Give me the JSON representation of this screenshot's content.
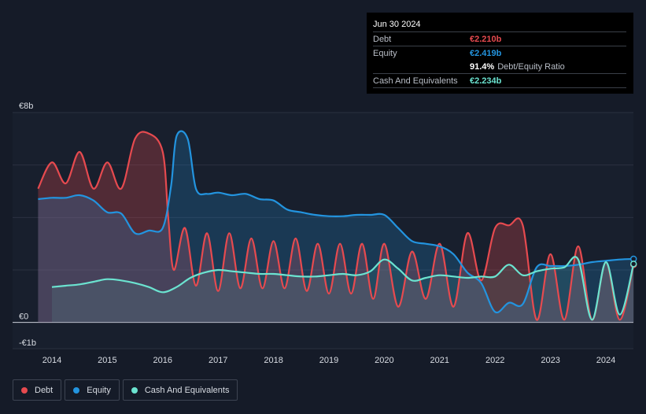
{
  "tooltip": {
    "date": "Jun 30 2024",
    "debt_label": "Debt",
    "debt_value": "€2.210b",
    "equity_label": "Equity",
    "equity_value": "€2.419b",
    "ratio_value": "91.4%",
    "ratio_label": "Debt/Equity Ratio",
    "cash_label": "Cash And Equivalents",
    "cash_value": "€2.234b"
  },
  "legend": {
    "debt_label": "Debt",
    "equity_label": "Equity",
    "cash_label": "Cash And Equivalents"
  },
  "colors": {
    "debt": "#e64a4f",
    "equity": "#2394df",
    "cash": "#6be3d0",
    "background": "#151b28"
  },
  "chart_data": {
    "type": "area",
    "title": "",
    "xlabel": "",
    "ylabel": "",
    "ylim": [
      -1,
      8
    ],
    "y_tick_labels": [
      {
        "value": 8,
        "label": "€8b"
      },
      {
        "value": 0,
        "label": "€0"
      },
      {
        "value": -1,
        "label": "-€1b"
      }
    ],
    "x_tick_labels": [
      "2014",
      "2015",
      "2016",
      "2017",
      "2018",
      "2019",
      "2020",
      "2021",
      "2022",
      "2023",
      "2024"
    ],
    "series": [
      {
        "name": "Debt",
        "x": [
          2013.75,
          2014.0,
          2014.25,
          2014.5,
          2014.75,
          2015.0,
          2015.25,
          2015.5,
          2015.75,
          2016.0,
          2016.1,
          2016.2,
          2016.4,
          2016.6,
          2016.8,
          2017.0,
          2017.2,
          2017.4,
          2017.6,
          2017.8,
          2018.0,
          2018.2,
          2018.4,
          2018.6,
          2018.8,
          2019.0,
          2019.2,
          2019.4,
          2019.6,
          2019.8,
          2020.0,
          2020.25,
          2020.5,
          2020.75,
          2021.0,
          2021.25,
          2021.5,
          2021.75,
          2022.0,
          2022.25,
          2022.5,
          2022.75,
          2023.0,
          2023.25,
          2023.5,
          2023.75,
          2024.0,
          2024.25,
          2024.5
        ],
        "values": [
          5.1,
          6.1,
          5.3,
          6.5,
          5.1,
          6.1,
          5.1,
          7.0,
          7.2,
          6.5,
          4.0,
          2.0,
          3.6,
          1.4,
          3.4,
          1.2,
          3.4,
          1.3,
          3.2,
          1.3,
          3.1,
          1.3,
          3.2,
          1.2,
          3.0,
          1.1,
          3.0,
          1.1,
          3.0,
          0.9,
          3.0,
          0.6,
          2.7,
          0.9,
          3.0,
          0.6,
          3.4,
          1.6,
          3.6,
          3.7,
          3.7,
          0.1,
          2.6,
          0.1,
          2.9,
          0.1,
          2.3,
          0.1,
          2.2
        ]
      },
      {
        "name": "Equity",
        "x": [
          2013.75,
          2014.0,
          2014.25,
          2014.5,
          2014.75,
          2015.0,
          2015.25,
          2015.5,
          2015.75,
          2016.0,
          2016.15,
          2016.25,
          2016.45,
          2016.6,
          2016.8,
          2017.0,
          2017.25,
          2017.5,
          2017.75,
          2018.0,
          2018.25,
          2018.5,
          2018.75,
          2019.0,
          2019.25,
          2019.5,
          2019.75,
          2020.0,
          2020.25,
          2020.5,
          2020.75,
          2021.0,
          2021.25,
          2021.5,
          2021.75,
          2022.0,
          2022.25,
          2022.5,
          2022.75,
          2023.0,
          2023.25,
          2023.5,
          2023.75,
          2024.0,
          2024.25,
          2024.5
        ],
        "values": [
          4.7,
          4.75,
          4.75,
          4.85,
          4.65,
          4.2,
          4.15,
          3.4,
          3.5,
          3.6,
          5.2,
          7.1,
          7.0,
          5.1,
          4.9,
          4.95,
          4.85,
          4.9,
          4.7,
          4.65,
          4.3,
          4.2,
          4.1,
          4.05,
          4.05,
          4.1,
          4.1,
          4.1,
          3.6,
          3.1,
          3.0,
          2.9,
          2.6,
          1.9,
          1.5,
          0.4,
          0.75,
          0.7,
          2.1,
          2.15,
          2.15,
          2.2,
          2.3,
          2.35,
          2.4,
          2.42
        ]
      },
      {
        "name": "Cash And Equivalents",
        "x": [
          2014.0,
          2014.25,
          2014.5,
          2014.75,
          2015.0,
          2015.25,
          2015.5,
          2015.75,
          2016.0,
          2016.25,
          2016.5,
          2016.75,
          2017.0,
          2017.25,
          2017.5,
          2017.75,
          2018.0,
          2018.25,
          2018.5,
          2018.75,
          2019.0,
          2019.25,
          2019.5,
          2019.75,
          2020.0,
          2020.25,
          2020.5,
          2020.75,
          2021.0,
          2021.25,
          2021.5,
          2021.75,
          2022.0,
          2022.25,
          2022.5,
          2022.75,
          2023.0,
          2023.25,
          2023.5,
          2023.75,
          2024.0,
          2024.25,
          2024.5
        ],
        "values": [
          1.35,
          1.4,
          1.45,
          1.55,
          1.65,
          1.6,
          1.5,
          1.35,
          1.15,
          1.35,
          1.7,
          1.9,
          2.0,
          1.95,
          1.9,
          1.85,
          1.85,
          1.8,
          1.75,
          1.75,
          1.8,
          1.85,
          1.8,
          1.95,
          2.4,
          2.05,
          1.6,
          1.7,
          1.8,
          1.75,
          1.7,
          1.75,
          1.75,
          2.2,
          1.8,
          1.95,
          2.05,
          2.1,
          2.4,
          0.1,
          2.3,
          0.3,
          2.23
        ]
      }
    ]
  }
}
